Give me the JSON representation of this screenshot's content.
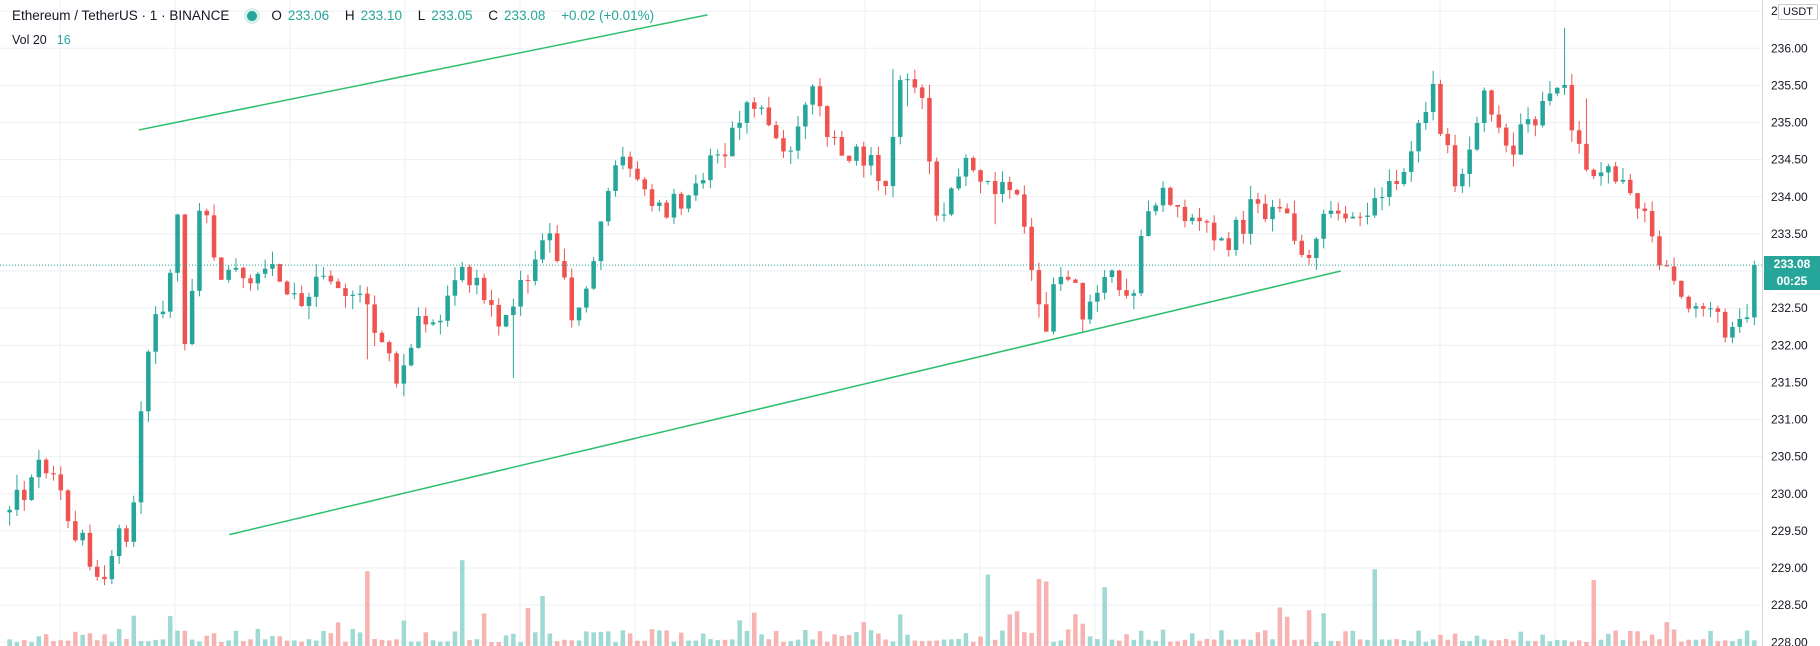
{
  "header": {
    "symbol": "Ethereum / TetherUS · 1 · BINANCE",
    "open_label": "O",
    "open_value": "233.06",
    "high_label": "H",
    "high_value": "233.10",
    "low_label": "L",
    "low_value": "233.05",
    "close_label": "C",
    "close_value": "233.08",
    "change": "+0.02 (+0.01%)"
  },
  "volume_legend": {
    "label": "Vol 20",
    "value": "16"
  },
  "currency": "USDT",
  "last_price_tag": {
    "price": "233.08",
    "countdown": "00:25"
  },
  "colors": {
    "up": "#26a69a",
    "down": "#ef5350",
    "trendline": "#2dbf6d",
    "grid": "#edeff3",
    "up_volume": "#9fd9d3",
    "down_volume": "#f7b3b1"
  },
  "chart_data": {
    "type": "candlestick",
    "title": "Ethereum / TetherUS · 1 · BINANCE",
    "y_axis": {
      "side": "right",
      "range": [
        227.95,
        236.65
      ],
      "ticks": [
        "228.00",
        "228.50",
        "229.00",
        "229.50",
        "230.00",
        "230.50",
        "231.00",
        "231.50",
        "232.00",
        "232.50",
        "233.00",
        "233.50",
        "234.00",
        "234.50",
        "235.00",
        "235.50",
        "236.00",
        "236.50"
      ]
    },
    "x_axis": {
      "labels_visible": false,
      "candle_count": 240
    },
    "grid": true,
    "last_price": 233.08,
    "price_path_closes": [
      [
        0,
        229.75
      ],
      [
        5,
        230.45
      ],
      [
        10,
        229.55
      ],
      [
        14,
        228.85
      ],
      [
        16,
        229.3
      ],
      [
        19,
        229.5
      ],
      [
        20,
        230.9
      ],
      [
        22,
        232.5
      ],
      [
        24,
        232.6
      ],
      [
        26,
        233.6
      ],
      [
        27,
        231.9
      ],
      [
        30,
        234.2
      ],
      [
        32,
        232.8
      ],
      [
        36,
        232.9
      ],
      [
        40,
        233.0
      ],
      [
        44,
        232.6
      ],
      [
        48,
        232.8
      ],
      [
        52,
        232.7
      ],
      [
        56,
        232.4
      ],
      [
        60,
        231.5
      ],
      [
        64,
        232.4
      ],
      [
        68,
        232.5
      ],
      [
        70,
        233.0
      ],
      [
        73,
        232.7
      ],
      [
        76,
        232.3
      ],
      [
        80,
        233.0
      ],
      [
        84,
        233.6
      ],
      [
        87,
        232.3
      ],
      [
        90,
        233.0
      ],
      [
        92,
        233.8
      ],
      [
        95,
        234.6
      ],
      [
        98,
        234.2
      ],
      [
        100,
        233.8
      ],
      [
        104,
        234.0
      ],
      [
        108,
        234.4
      ],
      [
        112,
        234.8
      ],
      [
        116,
        235.4
      ],
      [
        120,
        234.6
      ],
      [
        124,
        235.4
      ],
      [
        128,
        234.6
      ],
      [
        132,
        234.5
      ],
      [
        136,
        234.2
      ],
      [
        138,
        235.7
      ],
      [
        141,
        235.3
      ],
      [
        144,
        233.5
      ],
      [
        148,
        234.6
      ],
      [
        152,
        234.2
      ],
      [
        156,
        233.9
      ],
      [
        160,
        232.2
      ],
      [
        163,
        233.2
      ],
      [
        166,
        232.4
      ],
      [
        170,
        232.9
      ],
      [
        174,
        232.7
      ],
      [
        176,
        233.9
      ],
      [
        180,
        234.0
      ],
      [
        184,
        233.6
      ],
      [
        188,
        233.3
      ],
      [
        192,
        233.8
      ],
      [
        196,
        233.9
      ],
      [
        200,
        233.2
      ],
      [
        204,
        233.7
      ],
      [
        208,
        233.9
      ],
      [
        212,
        233.9
      ],
      [
        216,
        234.4
      ],
      [
        220,
        235.5
      ],
      [
        224,
        234.0
      ],
      [
        228,
        235.3
      ],
      [
        232,
        234.6
      ],
      [
        236,
        235.1
      ],
      [
        240,
        235.5
      ],
      [
        244,
        234.5
      ],
      [
        248,
        234.2
      ],
      [
        252,
        234.0
      ],
      [
        255,
        233.3
      ],
      [
        258,
        232.7
      ],
      [
        262,
        232.5
      ],
      [
        266,
        232.2
      ],
      [
        270,
        232.6
      ]
    ],
    "volume_panel": {
      "series_name": "Vol 20",
      "spike_levels": [
        0.05,
        0.12,
        0.28,
        0.62
      ]
    },
    "trendlines": [
      {
        "from": {
          "bar": 20,
          "price": 234.9
        },
        "to": {
          "bar": 108,
          "price": 236.45
        }
      },
      {
        "from": {
          "bar": 34,
          "price": 229.45
        },
        "to": {
          "bar": 206,
          "price": 233.0
        }
      }
    ]
  }
}
